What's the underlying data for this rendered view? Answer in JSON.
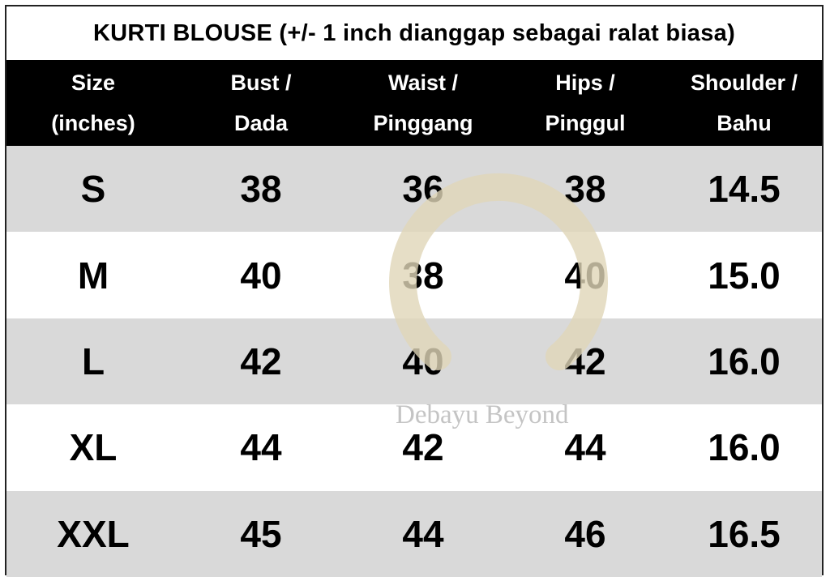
{
  "title": "KURTI BLOUSE (+/- 1 inch dianggap sebagai ralat biasa)",
  "headers": [
    {
      "line1": "Size",
      "line2": "(inches)"
    },
    {
      "line1": "Bust /",
      "line2": "Dada"
    },
    {
      "line1": "Waist /",
      "line2": "Pinggang"
    },
    {
      "line1": "Hips /",
      "line2": "Pinggul"
    },
    {
      "line1": "Shoulder /",
      "line2": "Bahu"
    }
  ],
  "rows": [
    [
      "S",
      "38",
      "36",
      "38",
      "14.5"
    ],
    [
      "M",
      "40",
      "38",
      "40",
      "15.0"
    ],
    [
      "L",
      "42",
      "40",
      "42",
      "16.0"
    ],
    [
      "XL",
      "44",
      "42",
      "44",
      "16.0"
    ],
    [
      "XXL",
      "45",
      "44",
      "46",
      "16.5"
    ]
  ],
  "watermark": {
    "text": "Debayu Beyond",
    "color": "#e0d6b8"
  },
  "colors": {
    "header_bg": "#000000",
    "row_gray": "#d9d9d9",
    "row_white": "#ffffff"
  }
}
